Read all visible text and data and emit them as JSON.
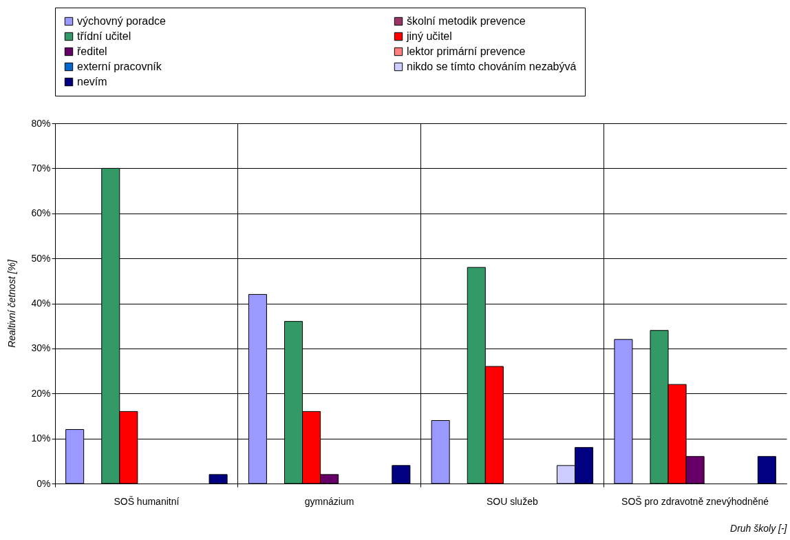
{
  "chart_data": {
    "type": "bar",
    "xlabel": "Druh školy [-]",
    "ylabel": "Realtivní četnost [%]",
    "categories": [
      "SOŠ humanitní",
      "gymnázium",
      "SOU služeb",
      "SOŠ pro zdravotně znevýhodněné"
    ],
    "series": [
      {
        "name": "výchovný poradce",
        "color": "#9999ff",
        "values": [
          12,
          42,
          14,
          32
        ]
      },
      {
        "name": "školní metodik prevence",
        "color": "#993366",
        "values": [
          null,
          null,
          null,
          null
        ]
      },
      {
        "name": "třídní učitel",
        "color": "#339966",
        "values": [
          70,
          36,
          48,
          34
        ]
      },
      {
        "name": "jiný učitel",
        "color": "#ff0000",
        "values": [
          16,
          16,
          26,
          22
        ]
      },
      {
        "name": "ředitel",
        "color": "#660066",
        "values": [
          null,
          2,
          null,
          6
        ]
      },
      {
        "name": "lektor primární prevence",
        "color": "#ff8080",
        "values": [
          null,
          null,
          null,
          null
        ]
      },
      {
        "name": "externí pracovník",
        "color": "#0066cc",
        "values": [
          null,
          null,
          null,
          null
        ]
      },
      {
        "name": "nikdo se tímto chováním nezabývá",
        "color": "#ccccff",
        "values": [
          null,
          null,
          4,
          null
        ]
      },
      {
        "name": "nevím",
        "color": "#000080",
        "values": [
          2,
          4,
          8,
          6
        ]
      }
    ],
    "ylim": [
      0,
      80
    ],
    "yticks": [
      {
        "value": 0,
        "label": "0%"
      },
      {
        "value": 10,
        "label": "10%"
      },
      {
        "value": 20,
        "label": "20%"
      },
      {
        "value": 30,
        "label": "30%"
      },
      {
        "value": 40,
        "label": "40%"
      },
      {
        "value": 50,
        "label": "50%"
      },
      {
        "value": 60,
        "label": "60%"
      },
      {
        "value": 70,
        "label": "70%"
      },
      {
        "value": 80,
        "label": "80%"
      }
    ],
    "grid": true,
    "legend": "top"
  }
}
